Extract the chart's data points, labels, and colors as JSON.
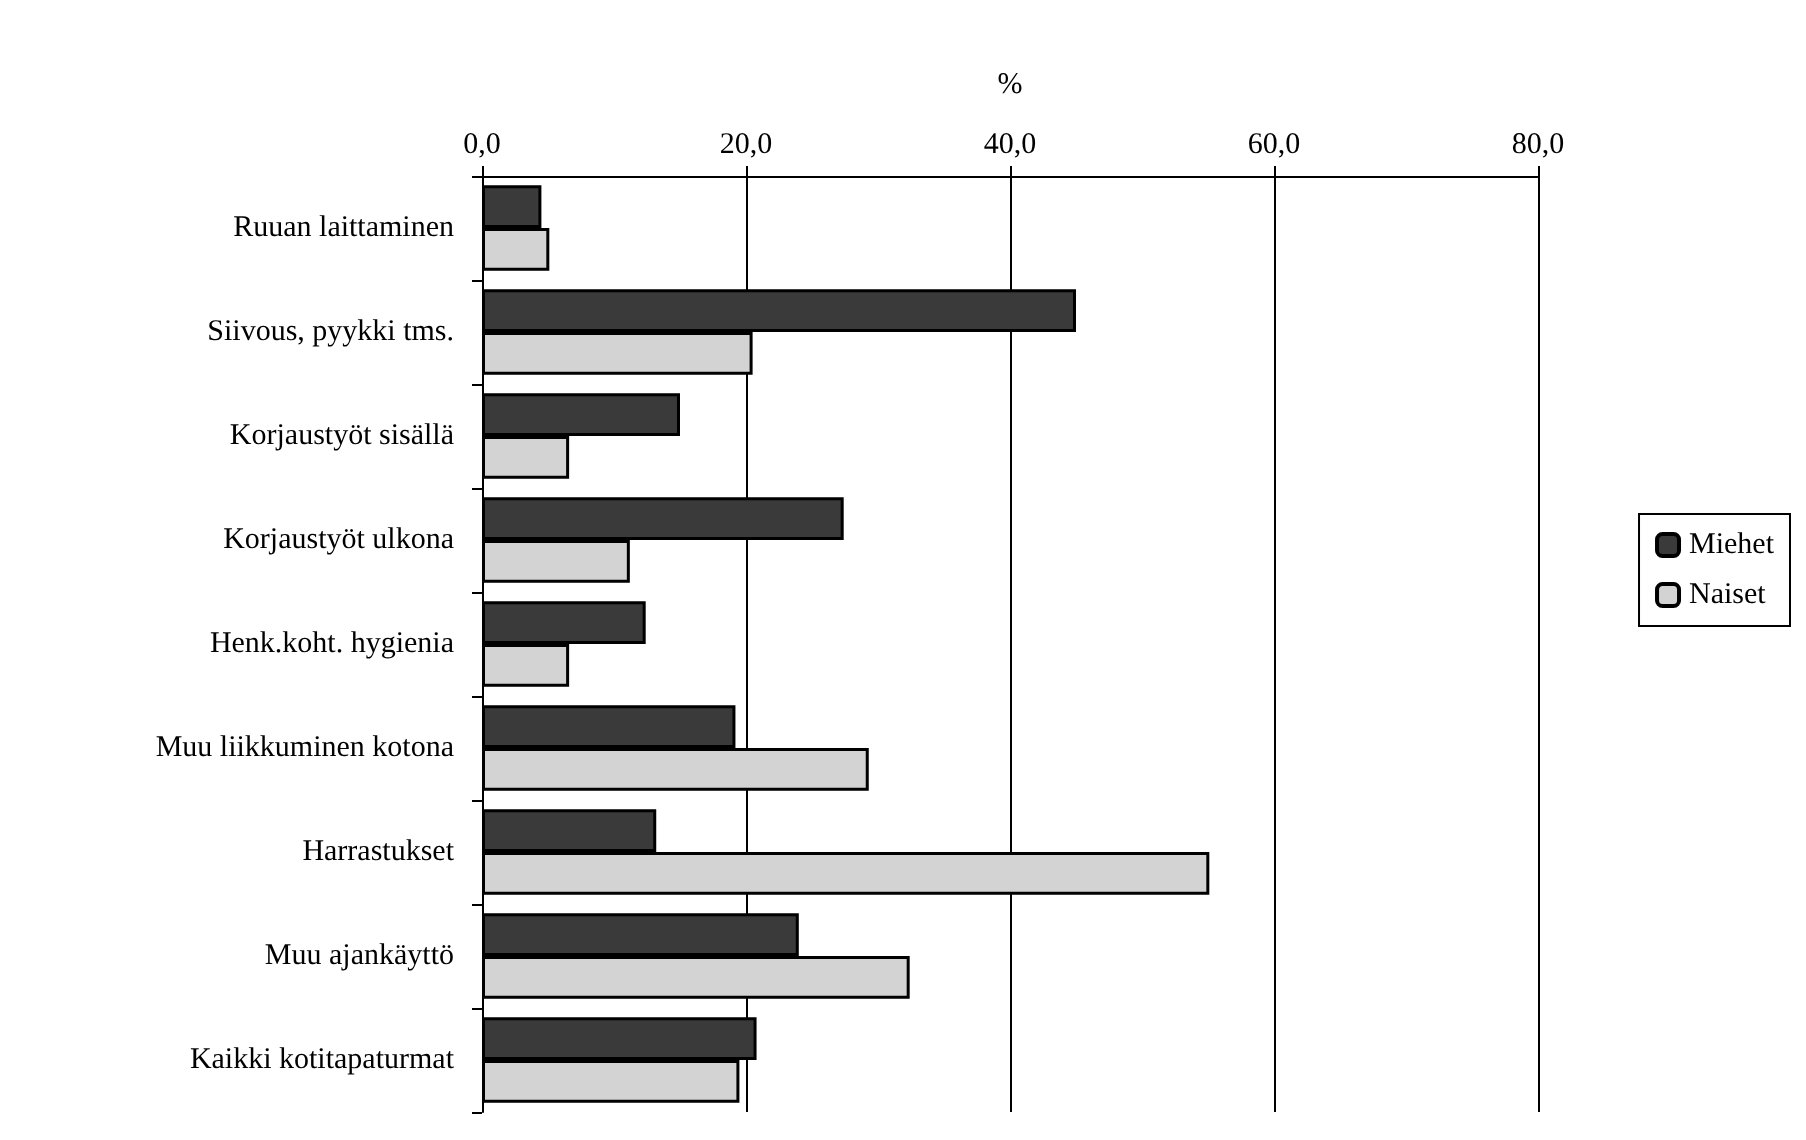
{
  "chart_data": {
    "type": "bar",
    "orientation": "horizontal",
    "xlabel": "%",
    "categories": [
      "Ruuan laittaminen",
      "Siivous, pyykki tms.",
      "Korjaustyöt sisällä",
      "Korjaustyöt ulkona",
      "Henk.koht. hygienia",
      "Muu liikkuminen kotona",
      "Harrastukset",
      "Muu ajankäyttö",
      "Kaikki kotitapaturmat"
    ],
    "series": [
      {
        "name": "Miehet",
        "color": "#3a3a3a",
        "values": [
          4.5,
          45.0,
          15.0,
          27.4,
          12.4,
          19.2,
          13.2,
          24.0,
          20.8
        ]
      },
      {
        "name": "Naiset",
        "color": "#d3d3d3",
        "values": [
          5.1,
          20.5,
          6.6,
          11.2,
          6.6,
          29.3,
          55.1,
          32.4,
          19.5
        ]
      }
    ],
    "xlim": [
      0,
      80
    ],
    "xticks": [
      {
        "value": 0,
        "label": "0,0"
      },
      {
        "value": 20,
        "label": "20,0"
      },
      {
        "value": 40,
        "label": "40,0"
      },
      {
        "value": 60,
        "label": "60,0"
      },
      {
        "value": 80,
        "label": "80,0"
      }
    ],
    "grid": "x",
    "legend": "right"
  }
}
